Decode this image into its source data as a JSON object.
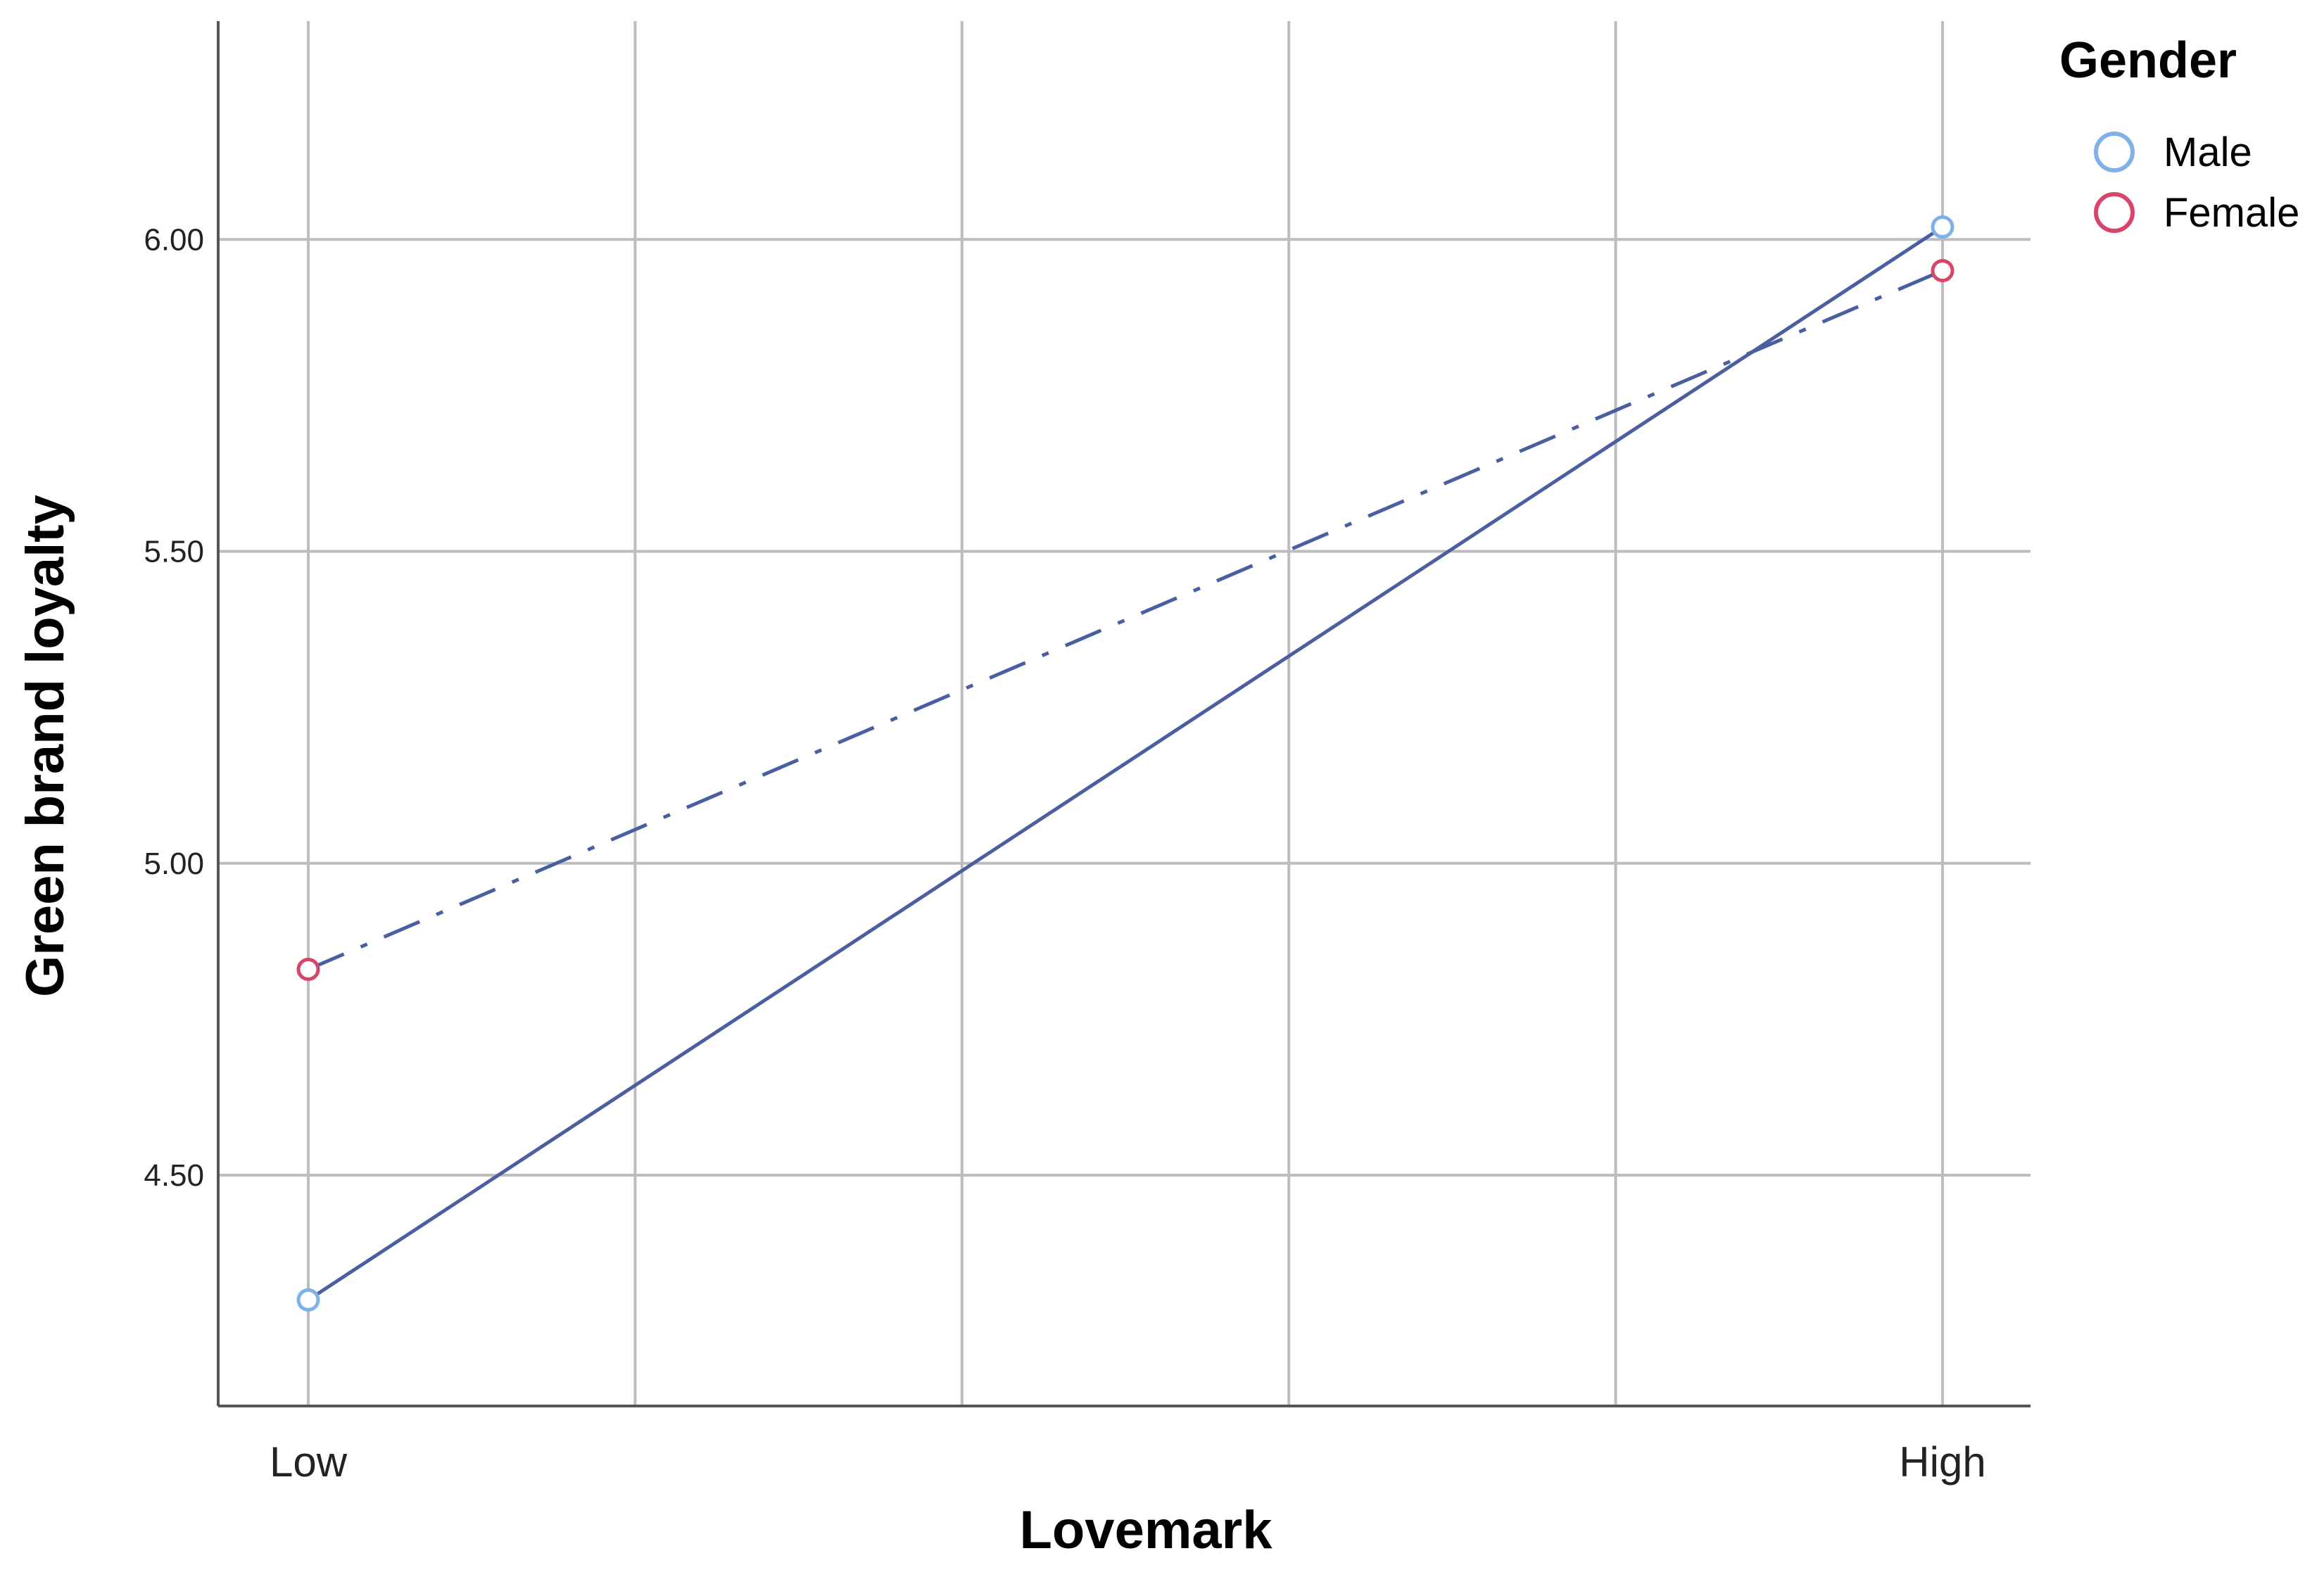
{
  "chart_data": {
    "type": "line",
    "xlabel": "Lovemark",
    "ylabel": "Green brand loyalty",
    "categories": [
      "Low",
      "High"
    ],
    "ylim": [
      4.13,
      6.35
    ],
    "yticks": [
      "4.50",
      "5.00",
      "5.50",
      "6.00"
    ],
    "ytick_values": [
      4.5,
      5.0,
      5.5,
      6.0
    ],
    "x_gridlines": 6,
    "grid": true,
    "legend": {
      "title": "Gender",
      "placement": "top-right"
    },
    "series": [
      {
        "name": "Male",
        "values": [
          4.3,
          6.02
        ],
        "line_style": "solid",
        "line_color": "#4a5fa0",
        "marker_color": "#7fb0e8"
      },
      {
        "name": "Female",
        "values": [
          4.83,
          5.95
        ],
        "line_style": "dash-dot",
        "line_color": "#4a5fa0",
        "marker_color": "#d9446a"
      }
    ]
  }
}
